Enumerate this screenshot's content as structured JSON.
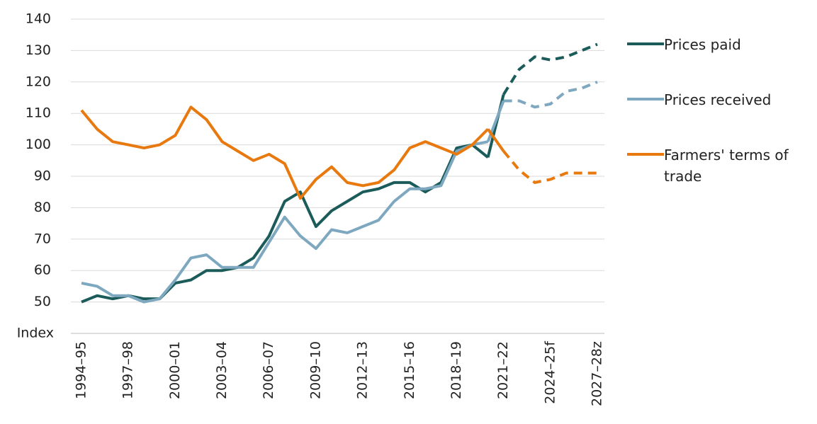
{
  "chart_data": {
    "type": "line",
    "y_label": "Index",
    "categories": [
      "1994–95",
      null,
      null,
      "1997–98",
      null,
      null,
      "2000–01",
      null,
      null,
      "2003–04",
      null,
      null,
      "2006–07",
      null,
      null,
      "2009–10",
      null,
      null,
      "2012–13",
      null,
      null,
      "2015–16",
      null,
      null,
      "2018–19",
      null,
      null,
      "2021–22",
      null,
      null,
      "2024–25f",
      null,
      null,
      "2027–28z"
    ],
    "series": [
      {
        "name": "Prices paid",
        "color": "#1b5c5b",
        "values": [
          50,
          52,
          51,
          52,
          51,
          51,
          56,
          57,
          60,
          60,
          61,
          64,
          71,
          82,
          85,
          74,
          79,
          82,
          85,
          86,
          88,
          88,
          85,
          88,
          99,
          100,
          96,
          116,
          124,
          128,
          127,
          128,
          130,
          132
        ]
      },
      {
        "name": "Prices received",
        "color": "#7ea8c0",
        "values": [
          56,
          55,
          52,
          52,
          50,
          51,
          57,
          64,
          65,
          61,
          61,
          61,
          69,
          77,
          71,
          67,
          73,
          72,
          74,
          76,
          82,
          86,
          86,
          87,
          98,
          100,
          101,
          114,
          114,
          112,
          113,
          117,
          118,
          120
        ]
      },
      {
        "name": "Farmers' terms of trade",
        "color": "#e8790f",
        "values": [
          111,
          105,
          101,
          100,
          99,
          100,
          103,
          112,
          108,
          101,
          98,
          95,
          97,
          94,
          83,
          89,
          93,
          88,
          87,
          88,
          92,
          99,
          101,
          99,
          97,
          100,
          105,
          98,
          92,
          88,
          89,
          91,
          91,
          91
        ]
      }
    ],
    "dashed_from_index": 27,
    "ylim": [
      40,
      140
    ],
    "yticks": [
      50,
      60,
      70,
      80,
      90,
      100,
      110,
      120,
      130,
      140
    ],
    "grid": true
  }
}
